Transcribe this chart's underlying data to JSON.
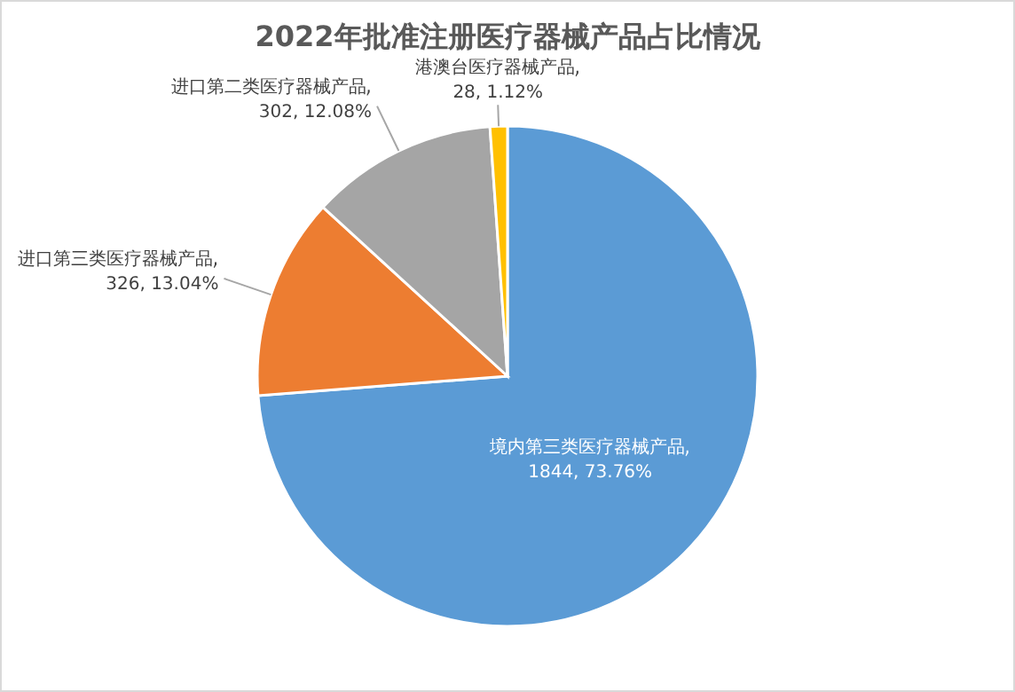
{
  "chart_data": {
    "type": "pie",
    "title": "2022年批准注册医疗器械产品占比情况",
    "categories": [
      "境内第三类医疗器械产品",
      "进口第三类医疗器械产品",
      "进口第二类医疗器械产品",
      "港澳台医疗器械产品"
    ],
    "values": [
      1844,
      326,
      302,
      28
    ],
    "value_labels": [
      "1844, 73.76%",
      "326, 13.04%",
      "302, 12.08%",
      "28, 1.12%"
    ],
    "colors": [
      "#5b9bd5",
      "#ed7d31",
      "#a5a5a5",
      "#ffc000"
    ]
  }
}
